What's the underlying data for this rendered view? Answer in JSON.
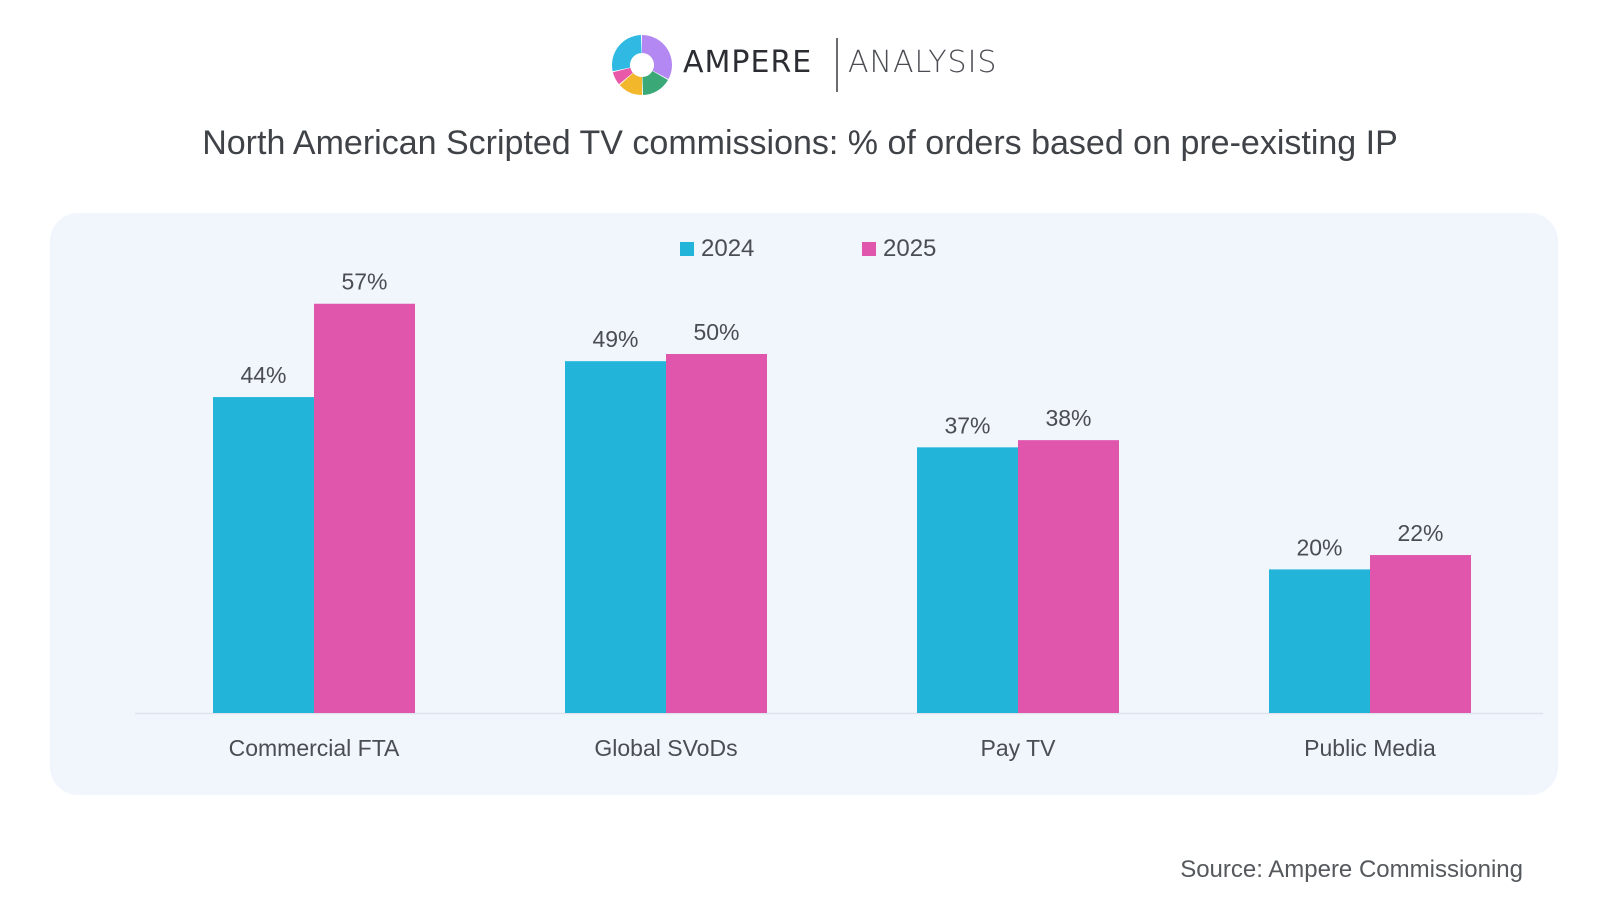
{
  "logo": {
    "brand": "AMPERE",
    "brand_secondary": "ANALYSIS",
    "colors": [
      "#b488f2",
      "#3aa877",
      "#f3b72c",
      "#e85aa8",
      "#2fb9e3"
    ]
  },
  "colors": {
    "series_2024": "#22b5d9",
    "series_2025": "#e056ad",
    "panel_bg": "#f1f5fc",
    "label_text": "#4a4d52"
  },
  "chart_data": {
    "type": "bar",
    "title": "North American Scripted TV commissions: % of orders based on pre-existing IP",
    "categories": [
      "Commercial FTA",
      "Global SVoDs",
      "Pay TV",
      "Public Media"
    ],
    "series": [
      {
        "name": "2024",
        "values": [
          44,
          49,
          37,
          20
        ],
        "labels": [
          "44%",
          "49%",
          "37%",
          "20%"
        ]
      },
      {
        "name": "2025",
        "values": [
          57,
          50,
          38,
          22
        ],
        "labels": [
          "57%",
          "50%",
          "38%",
          "22%"
        ]
      }
    ],
    "xlabel": "",
    "ylabel": "",
    "ylim": [
      0,
      60
    ],
    "grid": false,
    "legend": "top-center",
    "unit": "%"
  },
  "footer": {
    "source": "Source: Ampere Commissioning"
  }
}
